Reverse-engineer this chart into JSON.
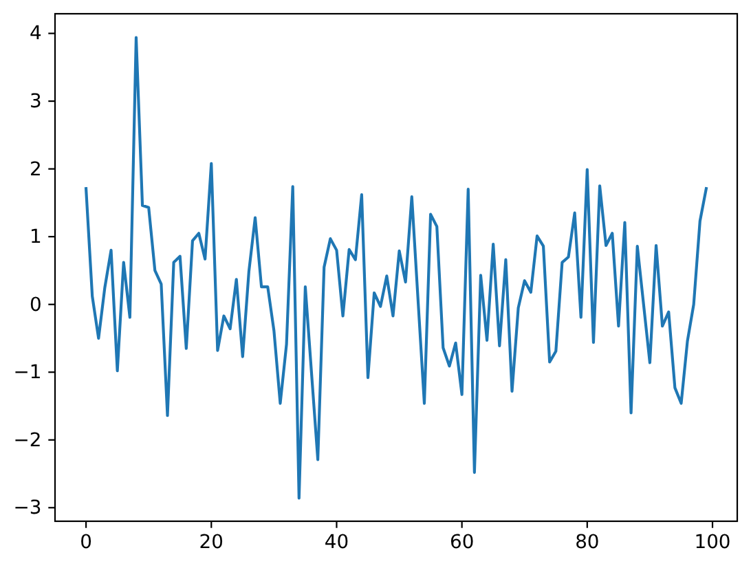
{
  "chart_data": {
    "type": "line",
    "x": [
      0,
      1,
      2,
      3,
      4,
      5,
      6,
      7,
      8,
      9,
      10,
      11,
      12,
      13,
      14,
      15,
      16,
      17,
      18,
      19,
      20,
      21,
      22,
      23,
      24,
      25,
      26,
      27,
      28,
      29,
      30,
      31,
      32,
      33,
      34,
      35,
      36,
      37,
      38,
      39,
      40,
      41,
      42,
      43,
      44,
      45,
      46,
      47,
      48,
      49,
      50,
      51,
      52,
      53,
      54,
      55,
      56,
      57,
      58,
      59,
      60,
      61,
      62,
      63,
      64,
      65,
      66,
      67,
      68,
      69,
      70,
      71,
      72,
      73,
      74,
      75,
      76,
      77,
      78,
      79,
      80,
      81,
      82,
      83,
      84,
      85,
      86,
      87,
      88,
      89,
      90,
      91,
      92,
      93,
      94,
      95,
      96,
      97,
      98,
      99
    ],
    "series": [
      {
        "color": "#1f77b4",
        "values": [
          1.71,
          0.12,
          -0.5,
          0.25,
          0.8,
          -0.98,
          0.62,
          -0.19,
          3.94,
          1.46,
          1.43,
          0.5,
          0.3,
          -1.64,
          0.62,
          0.71,
          -0.65,
          0.94,
          1.05,
          0.67,
          2.08,
          -0.68,
          -0.17,
          -0.36,
          0.37,
          -0.77,
          0.49,
          1.28,
          0.26,
          0.26,
          -0.39,
          -1.46,
          -0.59,
          1.74,
          -2.86,
          0.26,
          -1.02,
          -2.29,
          0.55,
          0.97,
          0.8,
          -0.17,
          0.81,
          0.66,
          1.62,
          -1.08,
          0.17,
          -0.03,
          0.42,
          -0.17,
          0.79,
          0.33,
          1.59,
          0.06,
          -1.46,
          1.33,
          1.15,
          -0.64,
          -0.91,
          -0.57,
          -1.33,
          1.7,
          -2.48,
          0.43,
          -0.53,
          0.89,
          -0.61,
          0.66,
          -1.28,
          -0.05,
          0.35,
          0.18,
          1.01,
          0.86,
          -0.85,
          -0.69,
          0.62,
          0.7,
          1.35,
          -0.19,
          1.99,
          -0.56,
          1.75,
          0.87,
          1.05,
          -0.32,
          1.21,
          -1.6,
          0.86,
          0.0,
          -0.86,
          0.87,
          -0.32,
          -0.11,
          -1.23,
          -1.46,
          -0.54,
          0.0,
          1.23,
          1.71
        ]
      }
    ],
    "xlim": [
      -4.95,
      103.95
    ],
    "ylim": [
      -3.2,
      4.29
    ],
    "xticks": [
      0,
      20,
      40,
      60,
      80,
      100
    ],
    "yticks": [
      {
        "value": -3,
        "label": "−3"
      },
      {
        "value": -2,
        "label": "−2"
      },
      {
        "value": -1,
        "label": "−1"
      },
      0,
      1,
      2,
      3,
      4
    ]
  }
}
